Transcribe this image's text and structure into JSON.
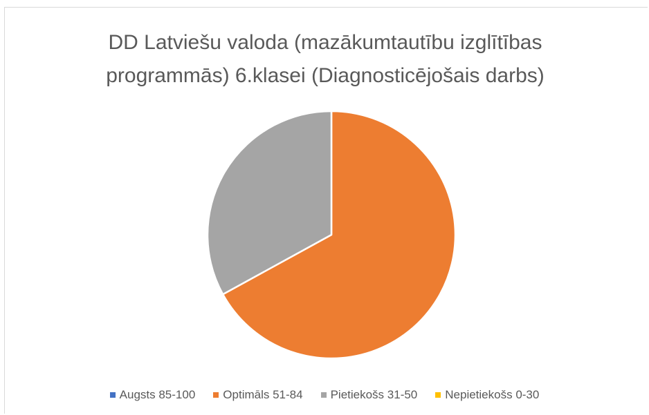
{
  "chart_data": {
    "type": "pie",
    "title": "DD Latviešu valoda (mazākumtautību izglītības programmās) 6.klasei (Diagnosticējošais darbs)",
    "categories": [
      "Augsts 85-100",
      "Optimāls 51-84",
      "Pietiekošs 31-50",
      "Nepietiekošs 0-30"
    ],
    "values": [
      0,
      67,
      33,
      0
    ],
    "colors": [
      "#4472c4",
      "#ed7d31",
      "#a5a5a5",
      "#ffc000"
    ],
    "legend": "bottom"
  }
}
